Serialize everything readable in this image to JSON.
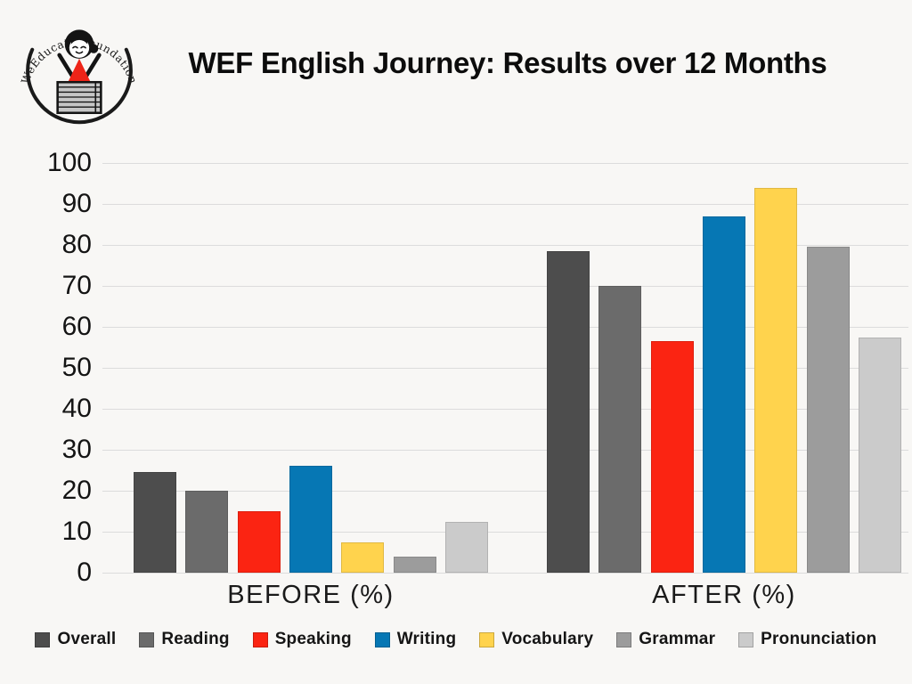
{
  "colors": {
    "background": "#f8f7f5",
    "gridline": "#dcdcdc",
    "title_text": "#0c0c0c",
    "logo_accent_red": "#ee2418"
  },
  "logo": {
    "text": "WeEducate Foundation"
  },
  "header": {
    "title": "WEF English Journey: Results over 12 Months"
  },
  "chart_data": {
    "type": "bar",
    "title": "WEF English Journey: Results over 12 Months",
    "groups": [
      {
        "key": "before",
        "label": "BEFORE (%)"
      },
      {
        "key": "after",
        "label": "AFTER (%)"
      }
    ],
    "series": [
      {
        "name": "Overall",
        "color": "#4d4d4d",
        "values": [
          24.5,
          78.5
        ]
      },
      {
        "name": "Reading",
        "color": "#6b6b6b",
        "values": [
          20,
          70
        ]
      },
      {
        "name": "Speaking",
        "color": "#fb2412",
        "values": [
          15,
          56.5
        ]
      },
      {
        "name": "Writing",
        "color": "#0677b4",
        "values": [
          26,
          87
        ]
      },
      {
        "name": "Vocabulary",
        "color": "#ffd34d",
        "values": [
          7.5,
          94
        ]
      },
      {
        "name": "Grammar",
        "color": "#9c9c9c",
        "values": [
          4,
          79.5
        ]
      },
      {
        "name": "Pronunciation",
        "color": "#cbcbcb",
        "values": [
          12.5,
          57.5
        ]
      }
    ],
    "xlabel": "",
    "ylabel": "",
    "ylim": [
      0,
      100
    ],
    "y_ticks": [
      0,
      10,
      20,
      30,
      40,
      50,
      60,
      70,
      80,
      90,
      100
    ],
    "grid": "horizontal",
    "legend_position": "bottom"
  }
}
